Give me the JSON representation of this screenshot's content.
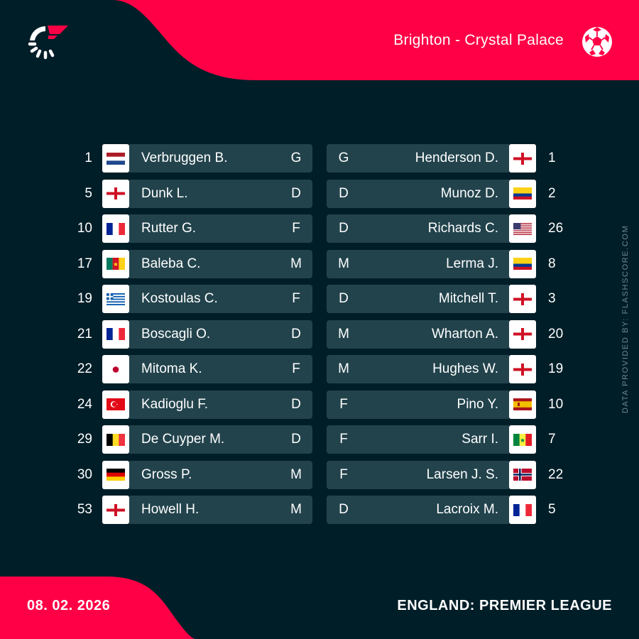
{
  "header": {
    "match": "Brighton - Crystal Palace"
  },
  "footer": {
    "date": "08. 02. 2026",
    "competition": "ENGLAND: PREMIER LEAGUE"
  },
  "credit": "DATA PROVIDED BY: FLASHSCORE.COM",
  "colors": {
    "background": "#001e28",
    "accent": "#ff0046",
    "row": "#22434c"
  },
  "home_lineup": [
    {
      "number": "1",
      "name": "Verbruggen B.",
      "position": "G",
      "flag": "netherlands"
    },
    {
      "number": "5",
      "name": "Dunk L.",
      "position": "D",
      "flag": "england"
    },
    {
      "number": "10",
      "name": "Rutter G.",
      "position": "F",
      "flag": "france"
    },
    {
      "number": "17",
      "name": "Baleba C.",
      "position": "M",
      "flag": "cameroon"
    },
    {
      "number": "19",
      "name": "Kostoulas C.",
      "position": "F",
      "flag": "greece"
    },
    {
      "number": "21",
      "name": "Boscagli O.",
      "position": "D",
      "flag": "france"
    },
    {
      "number": "22",
      "name": "Mitoma K.",
      "position": "F",
      "flag": "japan"
    },
    {
      "number": "24",
      "name": "Kadioglu F.",
      "position": "D",
      "flag": "turkey"
    },
    {
      "number": "29",
      "name": "De Cuyper M.",
      "position": "D",
      "flag": "belgium"
    },
    {
      "number": "30",
      "name": "Gross P.",
      "position": "M",
      "flag": "germany"
    },
    {
      "number": "53",
      "name": "Howell H.",
      "position": "M",
      "flag": "england"
    }
  ],
  "away_lineup": [
    {
      "number": "1",
      "name": "Henderson D.",
      "position": "G",
      "flag": "england"
    },
    {
      "number": "2",
      "name": "Munoz D.",
      "position": "D",
      "flag": "colombia"
    },
    {
      "number": "26",
      "name": "Richards C.",
      "position": "D",
      "flag": "usa"
    },
    {
      "number": "8",
      "name": "Lerma J.",
      "position": "M",
      "flag": "colombia"
    },
    {
      "number": "3",
      "name": "Mitchell T.",
      "position": "D",
      "flag": "england"
    },
    {
      "number": "20",
      "name": "Wharton A.",
      "position": "M",
      "flag": "england"
    },
    {
      "number": "19",
      "name": "Hughes W.",
      "position": "M",
      "flag": "england"
    },
    {
      "number": "10",
      "name": "Pino Y.",
      "position": "F",
      "flag": "spain"
    },
    {
      "number": "7",
      "name": "Sarr I.",
      "position": "F",
      "flag": "senegal"
    },
    {
      "number": "22",
      "name": "Larsen J. S.",
      "position": "F",
      "flag": "norway"
    },
    {
      "number": "5",
      "name": "Lacroix M.",
      "position": "D",
      "flag": "france"
    }
  ]
}
